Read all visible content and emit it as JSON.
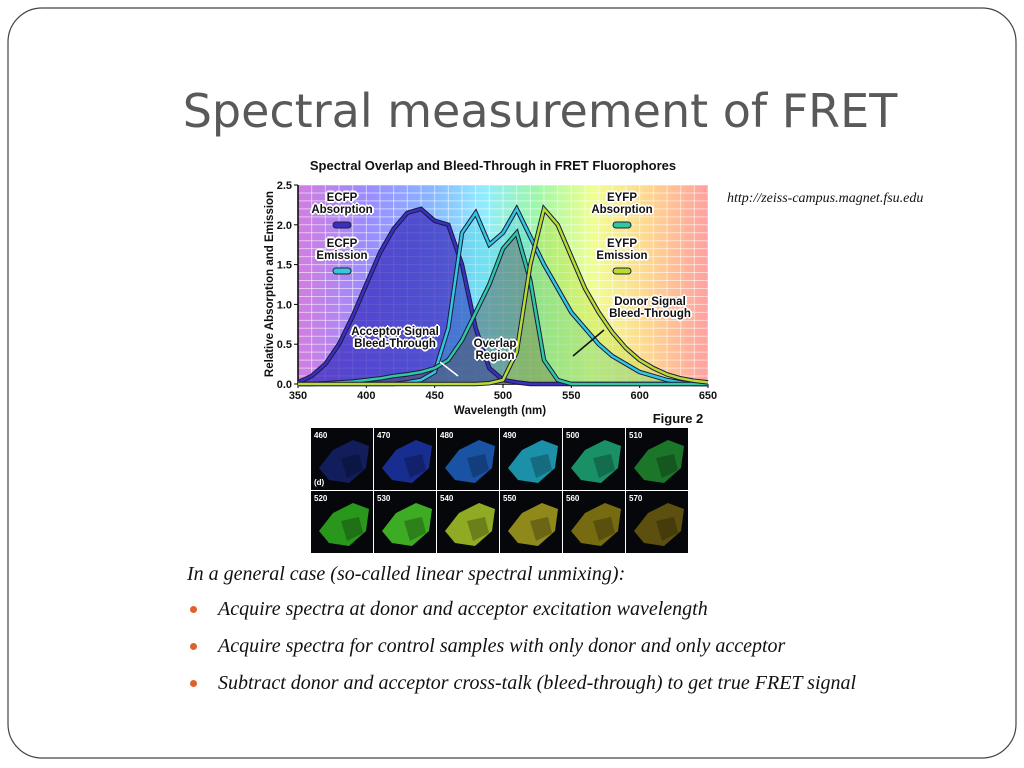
{
  "slide": {
    "title": "Spectral measurement of FRET",
    "source": "http://zeiss-campus.magnet.fsu.edu",
    "intro": "In a general case (so-called linear spectral unmixing):",
    "bullets": [
      "Acquire spectra at donor and acceptor excitation wavelength",
      "Acquire spectra for control samples with only donor and only acceptor",
      "Subtract donor and acceptor cross-talk (bleed-through) to get true FRET signal"
    ]
  },
  "chart_data": {
    "type": "line",
    "title": "Spectral Overlap and Bleed-Through in FRET Fluorophores",
    "x_label": "Wavelength (nm)",
    "y_label": "Relative Absorption and Emission",
    "figure_label": "Figure 2",
    "grid": true,
    "xlim": [
      350,
      650
    ],
    "xticks": [
      350,
      400,
      450,
      500,
      550,
      600,
      650
    ],
    "ylim": [
      0,
      2.5
    ],
    "yticks": [
      {
        "value": 0,
        "label": "0.0"
      },
      0.5,
      {
        "value": 1,
        "label": "1.0"
      },
      1.5,
      {
        "value": 2,
        "label": "2.0"
      },
      2.5
    ],
    "x": [
      350,
      360,
      370,
      380,
      390,
      400,
      410,
      420,
      430,
      440,
      450,
      460,
      470,
      480,
      490,
      500,
      510,
      520,
      530,
      540,
      550,
      560,
      570,
      580,
      590,
      600,
      610,
      620,
      630,
      640,
      650
    ],
    "series": [
      {
        "name": "ECFP Absorption",
        "color": "#3b2fc0",
        "values": [
          0.02,
          0.1,
          0.25,
          0.5,
          0.85,
          1.25,
          1.65,
          1.95,
          2.15,
          2.2,
          2.05,
          2.0,
          1.5,
          0.7,
          0.2,
          0.05,
          0.02,
          0,
          0,
          0,
          0,
          0,
          0,
          0,
          0,
          0,
          0,
          0,
          0,
          0,
          0
        ]
      },
      {
        "name": "ECFP Emission",
        "color": "#33c8dc",
        "values": [
          0,
          0,
          0,
          0,
          0,
          0,
          0,
          0,
          0.02,
          0.05,
          0.15,
          0.7,
          1.9,
          2.15,
          1.75,
          1.9,
          2.2,
          1.85,
          1.5,
          1.2,
          0.9,
          0.7,
          0.5,
          0.35,
          0.25,
          0.15,
          0.1,
          0.05,
          0.02,
          0,
          0
        ]
      },
      {
        "name": "EYFP Absorption",
        "color": "#2fc8a0",
        "values": [
          0,
          0,
          0.01,
          0.02,
          0.03,
          0.05,
          0.07,
          0.1,
          0.12,
          0.15,
          0.2,
          0.3,
          0.55,
          0.9,
          1.25,
          1.7,
          1.9,
          1.3,
          0.3,
          0.05,
          0,
          0,
          0,
          0,
          0,
          0,
          0,
          0,
          0,
          0,
          0
        ]
      },
      {
        "name": "EYFP Emission",
        "color": "#b8dc30",
        "values": [
          0,
          0,
          0,
          0,
          0,
          0,
          0,
          0,
          0,
          0,
          0,
          0,
          0,
          0,
          0.01,
          0.05,
          0.4,
          1.5,
          2.2,
          2.0,
          1.6,
          1.2,
          0.9,
          0.65,
          0.45,
          0.3,
          0.2,
          0.12,
          0.07,
          0.04,
          0.02
        ]
      }
    ],
    "annotations": [
      "Acceptor Signal Bleed-Through",
      "Overlap Region",
      "Donor Signal Bleed-Through"
    ]
  },
  "micrographs": {
    "panel_label": "(d)",
    "panels": [
      {
        "label": "460",
        "color": "#14226a"
      },
      {
        "label": "470",
        "color": "#1c34a8"
      },
      {
        "label": "480",
        "color": "#2060c0"
      },
      {
        "label": "490",
        "color": "#20a8c4"
      },
      {
        "label": "500",
        "color": "#1fa878"
      },
      {
        "label": "510",
        "color": "#208a30"
      },
      {
        "label": "520",
        "color": "#30b020"
      },
      {
        "label": "530",
        "color": "#48c828"
      },
      {
        "label": "540",
        "color": "#a8c828"
      },
      {
        "label": "550",
        "color": "#a8a020"
      },
      {
        "label": "560",
        "color": "#8c7c14"
      },
      {
        "label": "570",
        "color": "#6c5c10"
      }
    ]
  }
}
